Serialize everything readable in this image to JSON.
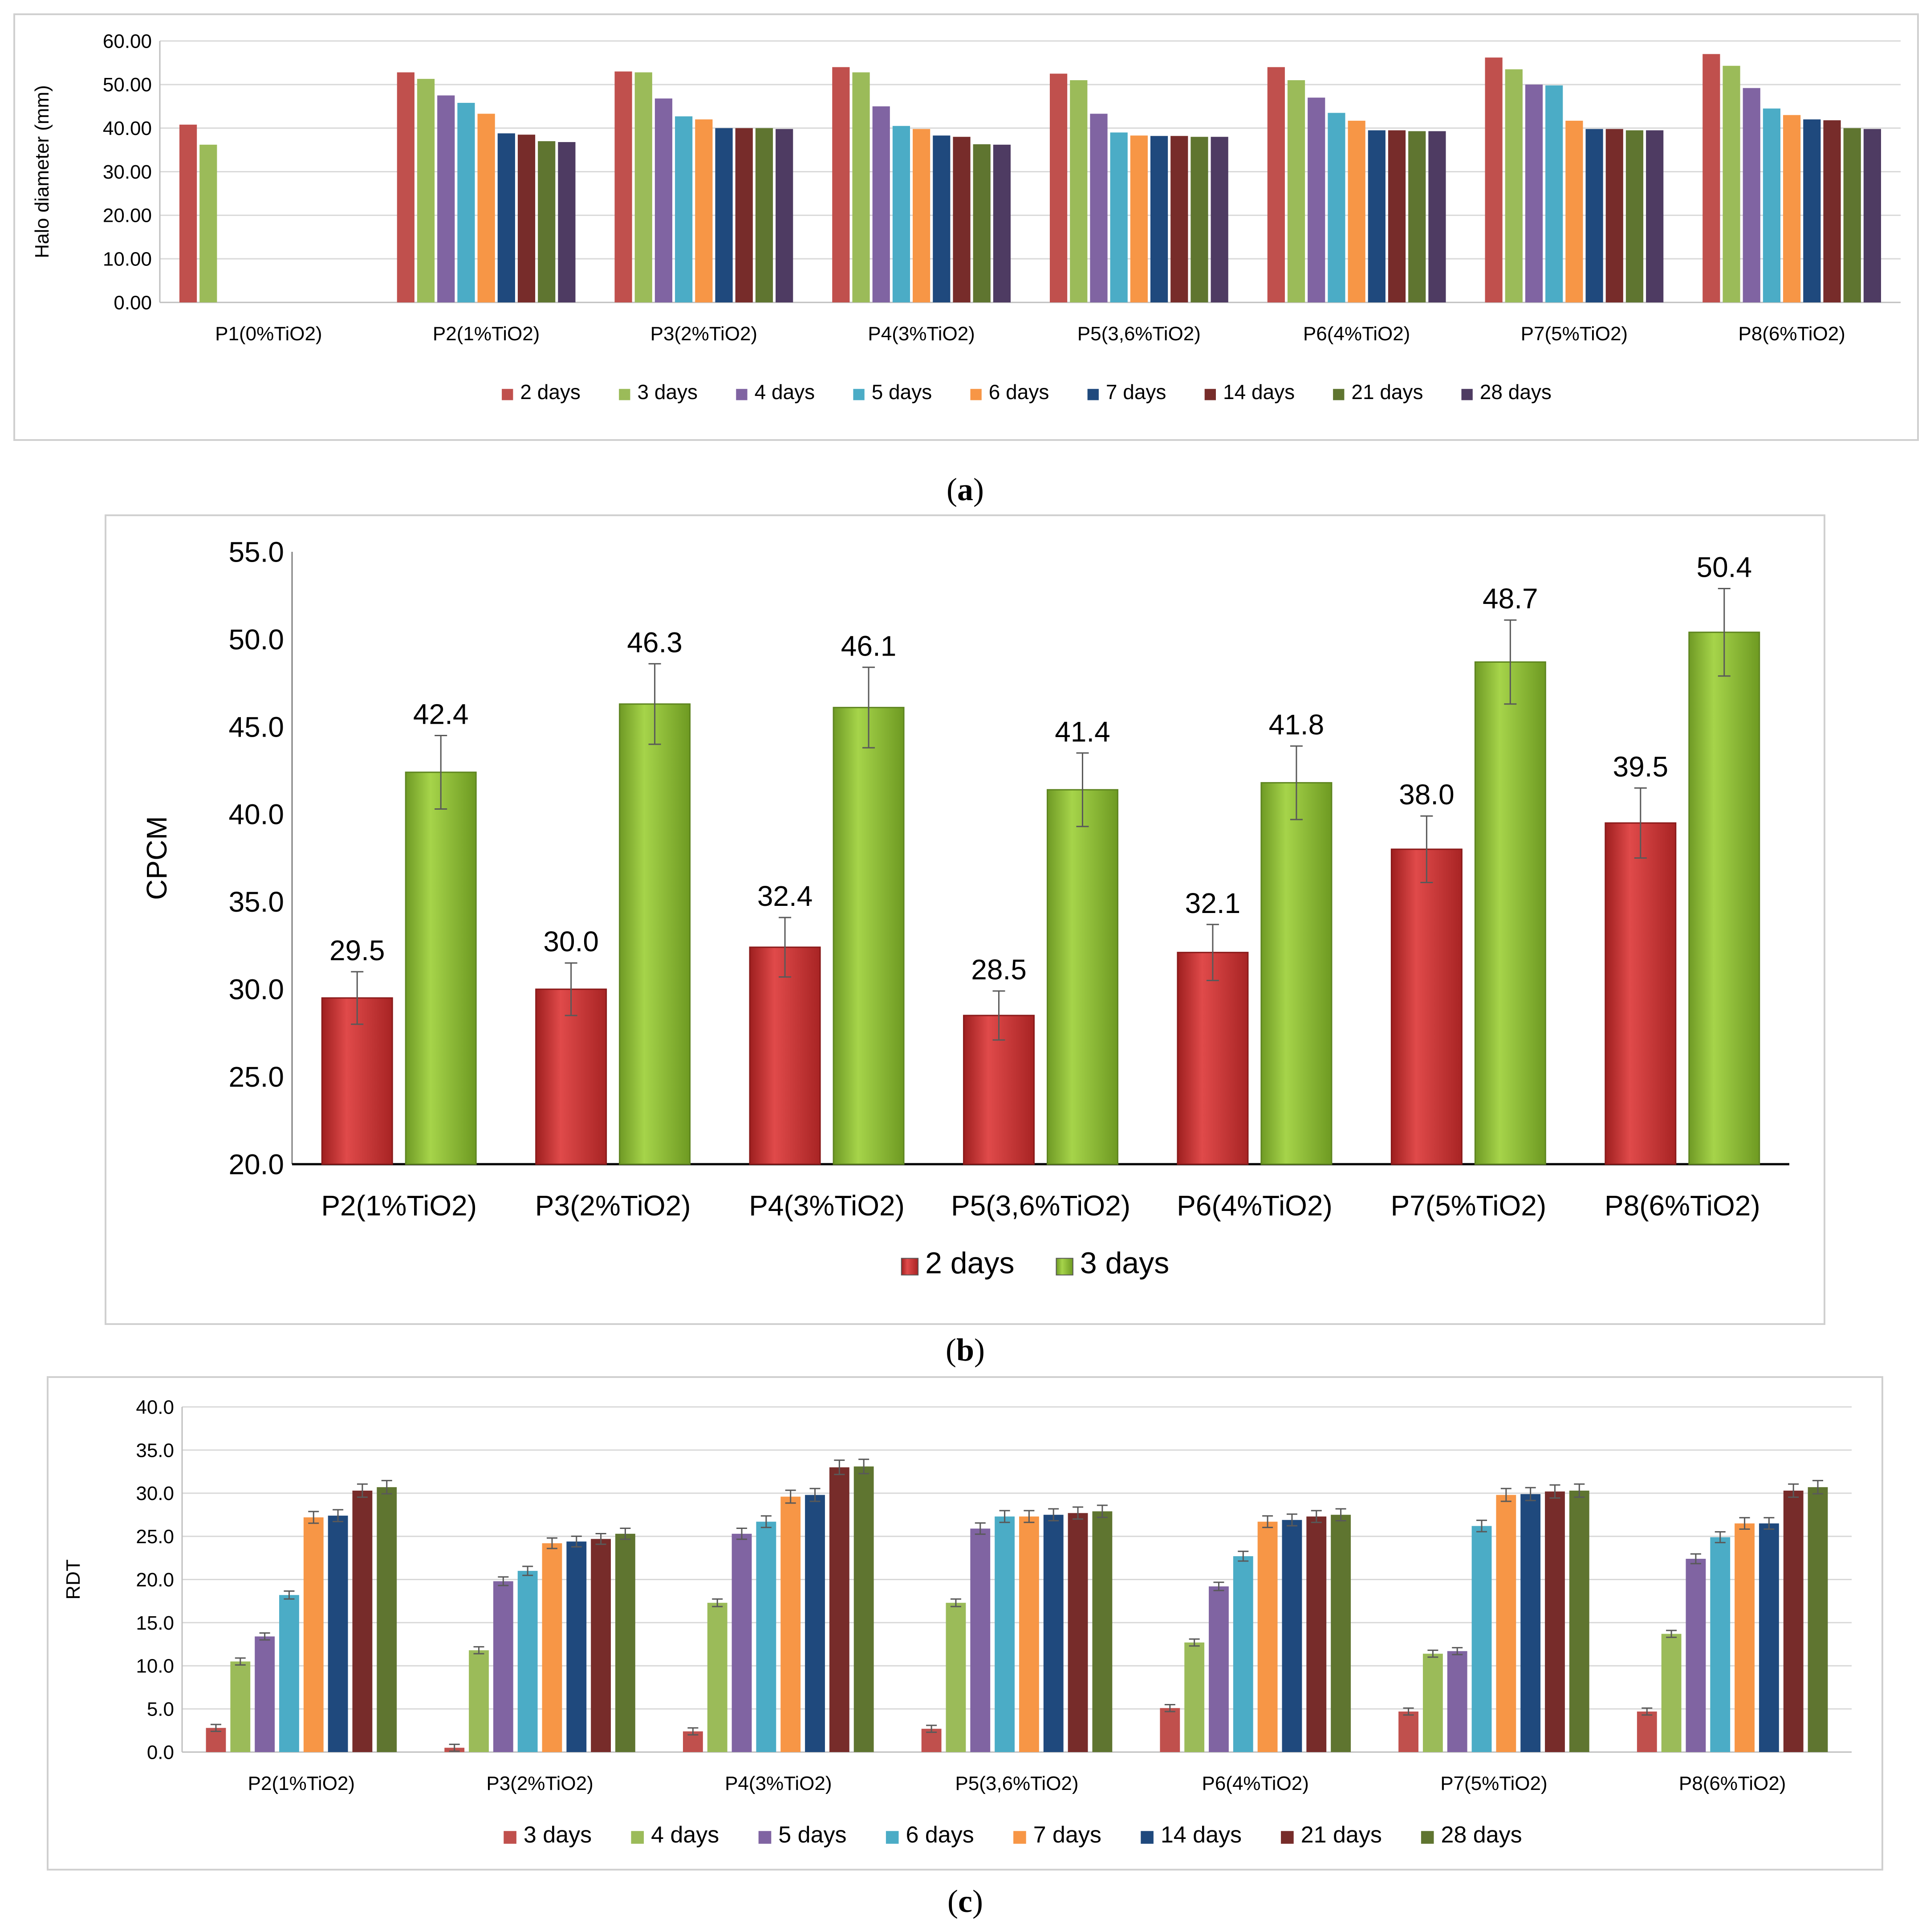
{
  "chart_data": [
    {
      "id": "a",
      "type": "bar",
      "title": "",
      "xlabel": "",
      "ylabel": "Halo diameter (mm)",
      "ylim": [
        0,
        60
      ],
      "yticks": [
        "0.00",
        "10.00",
        "20.00",
        "30.00",
        "40.00",
        "50.00",
        "60.00"
      ],
      "ytick_values": [
        0,
        10,
        20,
        30,
        40,
        50,
        60
      ],
      "gridlines": true,
      "legend": "bottom",
      "categories": [
        "P1(0%TiO2)",
        "P2(1%TiO2)",
        "P3(2%TiO2)",
        "P4(3%TiO2)",
        "P5(3,6%TiO2)",
        "P6(4%TiO2)",
        "P7(5%TiO2)",
        "P8(6%TiO2)"
      ],
      "series": [
        {
          "name": "2 days",
          "color": "#c0504d",
          "values": [
            40.8,
            52.8,
            53.0,
            54.0,
            52.5,
            54.0,
            56.2,
            57.0
          ]
        },
        {
          "name": "3 days",
          "color": "#9bbb59",
          "values": [
            36.2,
            51.3,
            52.8,
            52.8,
            51.0,
            51.0,
            53.5,
            54.3
          ]
        },
        {
          "name": "4 days",
          "color": "#8064a2",
          "values": [
            null,
            47.5,
            46.8,
            45.0,
            43.3,
            47.0,
            50.0,
            49.2
          ]
        },
        {
          "name": "5 days",
          "color": "#4bacc6",
          "values": [
            null,
            45.8,
            42.7,
            40.5,
            39.0,
            43.5,
            49.8,
            44.5
          ]
        },
        {
          "name": "6 days",
          "color": "#f79646",
          "values": [
            null,
            43.3,
            42.0,
            39.8,
            38.3,
            41.7,
            41.7,
            43.0
          ]
        },
        {
          "name": "7 days",
          "color": "#1f497d",
          "values": [
            null,
            38.8,
            40.0,
            38.3,
            38.2,
            39.5,
            39.8,
            42.0
          ]
        },
        {
          "name": "14 days",
          "color": "#772c2a",
          "values": [
            null,
            38.5,
            40.0,
            38.0,
            38.2,
            39.5,
            39.8,
            41.8
          ]
        },
        {
          "name": "21 days",
          "color": "#5f7530",
          "values": [
            null,
            37.0,
            40.0,
            36.3,
            38.0,
            39.3,
            39.5,
            40.0
          ]
        },
        {
          "name": "28 days",
          "color": "#4e3b62",
          "values": [
            null,
            36.8,
            39.8,
            36.2,
            38.0,
            39.3,
            39.5,
            39.8
          ]
        }
      ]
    },
    {
      "id": "b",
      "type": "bar",
      "title": "",
      "xlabel": "",
      "ylabel": "CPCM",
      "ylim": [
        20,
        55
      ],
      "yticks": [
        "20.0",
        "25.0",
        "30.0",
        "35.0",
        "40.0",
        "45.0",
        "50.0",
        "55.0"
      ],
      "ytick_values": [
        20,
        25,
        30,
        35,
        40,
        45,
        50,
        55
      ],
      "gridlines": false,
      "legend": "bottom",
      "categories": [
        "P2(1%TiO2)",
        "P3(2%TiO2)",
        "P4(3%TiO2)",
        "P5(3,6%TiO2)",
        "P6(4%TiO2)",
        "P7(5%TiO2)",
        "P8(6%TiO2)"
      ],
      "series": [
        {
          "name": "2 days",
          "color": "#d13b3b",
          "values": [
            29.5,
            30.0,
            32.4,
            28.5,
            32.1,
            38.0,
            39.5
          ],
          "labels": [
            "29.5",
            "30.0",
            "32.4",
            "28.5",
            "32.1",
            "38.0",
            "39.5"
          ],
          "errors": [
            1.5,
            1.5,
            1.7,
            1.4,
            1.6,
            1.9,
            2.0
          ]
        },
        {
          "name": "3 days",
          "color": "#8fc13a",
          "values": [
            42.4,
            46.3,
            46.1,
            41.4,
            41.8,
            48.7,
            50.4
          ],
          "labels": [
            "42.4",
            "46.3",
            "46.1",
            "41.4",
            "41.8",
            "48.7",
            "50.4"
          ],
          "errors": [
            2.1,
            2.3,
            2.3,
            2.1,
            2.1,
            2.4,
            2.5
          ]
        }
      ]
    },
    {
      "id": "c",
      "type": "bar",
      "title": "",
      "xlabel": "",
      "ylabel": "RDT",
      "ylim": [
        0,
        40
      ],
      "yticks": [
        "0.0",
        "5.0",
        "10.0",
        "15.0",
        "20.0",
        "25.0",
        "30.0",
        "35.0",
        "40.0"
      ],
      "ytick_values": [
        0,
        5,
        10,
        15,
        20,
        25,
        30,
        35,
        40
      ],
      "gridlines": true,
      "legend": "bottom",
      "categories": [
        "P2(1%TiO2)",
        "P3(2%TiO2)",
        "P4(3%TiO2)",
        "P5(3,6%TiO2)",
        "P6(4%TiO2)",
        "P7(5%TiO2)",
        "P8(6%TiO2)"
      ],
      "series": [
        {
          "name": "3 days",
          "color": "#c0504d",
          "values": [
            2.8,
            0.5,
            2.4,
            2.7,
            5.1,
            4.7,
            4.7
          ]
        },
        {
          "name": "4 days",
          "color": "#9bbb59",
          "values": [
            10.5,
            11.8,
            17.3,
            17.3,
            12.7,
            11.4,
            13.7
          ]
        },
        {
          "name": "5 days",
          "color": "#8064a2",
          "values": [
            13.4,
            19.8,
            25.3,
            25.9,
            19.2,
            11.7,
            22.4
          ]
        },
        {
          "name": "6 days",
          "color": "#4bacc6",
          "values": [
            18.2,
            21.0,
            26.7,
            27.3,
            22.7,
            26.2,
            24.9
          ]
        },
        {
          "name": "7 days",
          "color": "#f79646",
          "values": [
            27.2,
            24.2,
            29.6,
            27.3,
            26.7,
            29.8,
            26.5
          ]
        },
        {
          "name": "14 days",
          "color": "#1f497d",
          "values": [
            27.4,
            24.4,
            29.8,
            27.5,
            26.9,
            29.9,
            26.5
          ]
        },
        {
          "name": "21 days",
          "color": "#772c2a",
          "values": [
            30.3,
            24.7,
            33.0,
            27.7,
            27.3,
            30.2,
            30.3
          ]
        },
        {
          "name": "28 days",
          "color": "#5f7530",
          "values": [
            30.7,
            25.3,
            33.1,
            27.9,
            27.5,
            30.3,
            30.7
          ]
        }
      ]
    }
  ],
  "captions": {
    "a": "a",
    "b": "b",
    "c": "c"
  }
}
